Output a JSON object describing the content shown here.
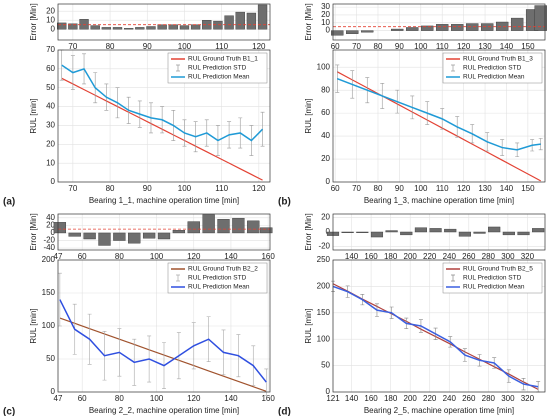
{
  "chart_data": [
    {
      "type": "bar",
      "ylabel": "Error [Min]",
      "x": [
        67,
        70,
        73,
        76,
        79,
        82,
        85,
        88,
        91,
        94,
        97,
        100,
        103,
        106,
        109,
        112,
        115,
        118,
        121
      ],
      "values": [
        7,
        6,
        11,
        4,
        2,
        2,
        1,
        2,
        3,
        5,
        5,
        4,
        5,
        10,
        9,
        15,
        19,
        18,
        27
      ],
      "color": "#6e6e6e",
      "hline": 5,
      "hline_color": "#e34234",
      "xlim": [
        66,
        123
      ],
      "xticks": [
        70,
        80,
        90,
        100,
        110,
        120
      ],
      "ylim": [
        -12,
        28
      ],
      "yticks": [
        0,
        10,
        20
      ],
      "grid": true
    },
    {
      "type": "line",
      "panel_label": "(a)",
      "xlabel": "Bearing 1_1, machine operation time [min]",
      "ylabel": "RUL [min]",
      "x": [
        67,
        70,
        73,
        76,
        79,
        82,
        85,
        88,
        91,
        94,
        97,
        100,
        103,
        106,
        109,
        112,
        115,
        118,
        121
      ],
      "series": [
        {
          "name": "RUL Ground Truth B1_1",
          "color": "#e34234",
          "style": "line",
          "values": [
            55,
            52,
            49,
            46,
            43,
            40,
            37,
            34,
            31,
            28,
            25,
            22,
            19,
            16,
            13,
            10,
            7,
            4,
            1
          ]
        },
        {
          "name": "RUL Prediction STD",
          "color": "#9a9a9a",
          "style": "errorbar",
          "values": [
            8,
            9,
            8,
            8,
            7,
            8,
            7,
            7,
            8,
            7,
            8,
            7,
            8,
            7,
            8,
            7,
            8,
            8,
            9
          ]
        },
        {
          "name": "RUL Prediction Mean",
          "color": "#1f9ad6",
          "style": "line",
          "values": [
            62,
            58,
            60,
            50,
            45,
            42,
            38,
            36,
            34,
            33,
            30,
            26,
            24,
            26,
            22,
            25,
            26,
            22,
            28
          ]
        }
      ],
      "xlim": [
        66,
        123
      ],
      "xticks": [
        70,
        80,
        90,
        100,
        110,
        120
      ],
      "ylim": [
        0,
        70
      ],
      "yticks": [
        0,
        10,
        20,
        30,
        40,
        50,
        60,
        70
      ],
      "grid": true
    },
    {
      "type": "bar",
      "ylabel": "Error [Min]",
      "x": [
        61,
        68,
        75,
        82,
        89,
        96,
        103,
        110,
        117,
        124,
        131,
        138,
        145,
        152,
        156
      ],
      "values": [
        -6,
        -4,
        -2,
        0,
        2,
        4,
        6,
        8,
        8,
        9,
        9,
        11,
        16,
        27,
        32
      ],
      "color": "#6e6e6e",
      "hline": 5,
      "hline_color": "#e34234",
      "xlim": [
        59,
        158
      ],
      "xticks": [
        60,
        70,
        80,
        90,
        100,
        110,
        120,
        130,
        140,
        150
      ],
      "ylim": [
        -12,
        34
      ],
      "yticks": [
        0,
        10,
        20,
        30
      ],
      "grid": true
    },
    {
      "type": "line",
      "panel_label": "(b)",
      "xlabel": "Bearing 1_3, machine operation time [min]",
      "ylabel": "RUL [min]",
      "x": [
        61,
        68,
        75,
        82,
        89,
        96,
        103,
        110,
        117,
        124,
        131,
        138,
        145,
        152,
        156
      ],
      "series": [
        {
          "name": "RUL Ground Truth B1_3",
          "color": "#e34234",
          "style": "line",
          "values": [
            96,
            89,
            82,
            75,
            68,
            61,
            54,
            47,
            40,
            33,
            26,
            19,
            12,
            5,
            1
          ]
        },
        {
          "name": "RUL Prediction STD",
          "color": "#9a9a9a",
          "style": "errorbar",
          "values": [
            12,
            12,
            11,
            11,
            10,
            10,
            10,
            9,
            9,
            8,
            8,
            7,
            6,
            5,
            5
          ]
        },
        {
          "name": "RUL Prediction Mean",
          "color": "#1f9ad6",
          "style": "line",
          "values": [
            90,
            85,
            80,
            75,
            70,
            65,
            60,
            55,
            48,
            42,
            35,
            30,
            28,
            32,
            33
          ]
        }
      ],
      "xlim": [
        59,
        158
      ],
      "xticks": [
        60,
        70,
        80,
        90,
        100,
        110,
        120,
        130,
        140,
        150
      ],
      "ylim": [
        0,
        115
      ],
      "yticks": [
        0,
        20,
        40,
        60,
        80,
        100
      ],
      "grid": true
    },
    {
      "type": "bar",
      "ylabel": "Error [Min]",
      "x": [
        48,
        56,
        64,
        72,
        80,
        88,
        96,
        104,
        112,
        120,
        128,
        136,
        144,
        152,
        159
      ],
      "values": [
        28,
        -9,
        -16,
        -33,
        -20,
        -27,
        -14,
        -16,
        7,
        30,
        48,
        36,
        39,
        32,
        14
      ],
      "color": "#6e6e6e",
      "hline": 10,
      "hline_color": "#e34234",
      "xlim": [
        47,
        161
      ],
      "xticks": [
        47,
        60,
        80,
        100,
        120,
        140,
        160
      ],
      "ylim": [
        -45,
        50
      ],
      "yticks": [
        -40,
        -20,
        0,
        20,
        40
      ],
      "grid": true
    },
    {
      "type": "line",
      "panel_label": "(c)",
      "xlabel": "Bearing 2_2, machine operation time [min]",
      "ylabel": "RUL [min]",
      "x": [
        48,
        56,
        64,
        72,
        80,
        88,
        96,
        104,
        112,
        120,
        128,
        136,
        144,
        152,
        159
      ],
      "series": [
        {
          "name": "RUL Ground Truth B2_2",
          "color": "#a0522d",
          "style": "line",
          "values": [
            112,
            104,
            96,
            88,
            80,
            72,
            64,
            56,
            48,
            40,
            32,
            24,
            16,
            8,
            1
          ]
        },
        {
          "name": "RUL Prediction STD",
          "color": "#aaaaaa",
          "style": "errorbar",
          "values": [
            40,
            38,
            38,
            37,
            36,
            35,
            35,
            35,
            35,
            35,
            34,
            34,
            32,
            30,
            20
          ]
        },
        {
          "name": "RUL Prediction Mean",
          "color": "#2f4fe0",
          "style": "line",
          "values": [
            140,
            95,
            80,
            55,
            60,
            45,
            50,
            40,
            55,
            70,
            80,
            60,
            55,
            40,
            15
          ]
        }
      ],
      "xlim": [
        47,
        161
      ],
      "xticks": [
        47,
        60,
        80,
        100,
        120,
        140,
        160
      ],
      "ylim": [
        0,
        200
      ],
      "yticks": [
        0,
        50,
        100,
        150,
        200
      ],
      "grid": true
    },
    {
      "type": "bar",
      "ylabel": "Error [Min]",
      "x": [
        121,
        136,
        151,
        166,
        181,
        196,
        211,
        226,
        241,
        256,
        271,
        286,
        301,
        316,
        331
      ],
      "values": [
        -5,
        -1,
        -1,
        -7,
        2,
        -4,
        6,
        5,
        4,
        -6,
        -2,
        7,
        -4,
        -4,
        5
      ],
      "color": "#6e6e6e",
      "xlim": [
        121,
        338
      ],
      "xticks": [
        140,
        160,
        180,
        200,
        220,
        240,
        260,
        280,
        300,
        320
      ],
      "ylim": [
        -25,
        25
      ],
      "yticks": [
        -20,
        0,
        20
      ],
      "grid": true
    },
    {
      "type": "line",
      "panel_label": "(d)",
      "xlabel": "Bearing 2_5, machine operation time [min]",
      "ylabel": "RUL [min]",
      "x": [
        121,
        136,
        151,
        166,
        181,
        196,
        211,
        226,
        241,
        256,
        271,
        286,
        301,
        316,
        331
      ],
      "series": [
        {
          "name": "RUL Ground Truth B2_5",
          "color": "#b0413e",
          "style": "line",
          "values": [
            205,
            191,
            176,
            162,
            148,
            134,
            119,
            105,
            91,
            76,
            62,
            48,
            34,
            19,
            5
          ]
        },
        {
          "name": "RUL Prediction STD",
          "color": "#888888",
          "style": "errorbar",
          "values": [
            10,
            11,
            10,
            12,
            11,
            10,
            12,
            11,
            10,
            12,
            11,
            10,
            12,
            11,
            10
          ]
        },
        {
          "name": "RUL Prediction Mean",
          "color": "#3a5fe0",
          "style": "line",
          "values": [
            200,
            190,
            175,
            155,
            150,
            130,
            125,
            110,
            95,
            70,
            60,
            55,
            30,
            15,
            10
          ]
        }
      ],
      "xlim": [
        121,
        338
      ],
      "xticks": [
        121,
        140,
        160,
        180,
        200,
        220,
        240,
        260,
        280,
        300,
        320
      ],
      "ylim": [
        0,
        250
      ],
      "yticks": [
        0,
        50,
        100,
        150,
        200,
        250
      ],
      "grid": true
    }
  ]
}
